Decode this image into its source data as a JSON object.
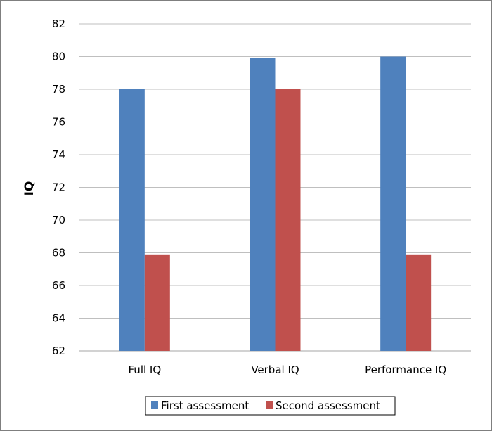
{
  "chart_data": {
    "type": "bar",
    "title": "",
    "xlabel": "",
    "ylabel": "IQ",
    "categories": [
      "Full IQ",
      "Verbal IQ",
      "Performance IQ"
    ],
    "series": [
      {
        "name": "First assessment",
        "values": [
          78,
          79.9,
          80
        ],
        "color": "#4f81bd"
      },
      {
        "name": "Second assessment",
        "values": [
          67.9,
          78,
          67.9
        ],
        "color": "#c0504d"
      }
    ],
    "ylim": [
      62,
      82
    ],
    "yticks": [
      62,
      64,
      66,
      68,
      70,
      72,
      74,
      76,
      78,
      80,
      82
    ],
    "grid": true,
    "legend_position": "bottom"
  }
}
